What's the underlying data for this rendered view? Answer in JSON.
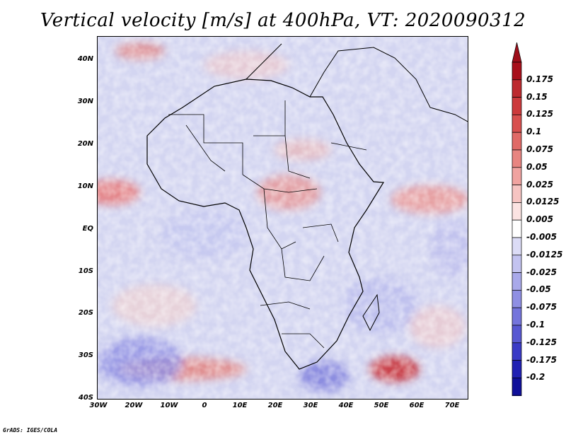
{
  "title": "Vertical velocity [m/s] at 400hPa, VT: 2020090312",
  "footer": "GrADS: IGES/COLA",
  "lat_labels": [
    "40N",
    "30N",
    "20N",
    "10N",
    "EQ",
    "10S",
    "20S",
    "30S",
    "40S"
  ],
  "lon_labels": [
    "30W",
    "20W",
    "10W",
    "0",
    "10E",
    "20E",
    "30E",
    "40E",
    "50E",
    "60E",
    "70E"
  ],
  "colorbar": {
    "levels": [
      "0.175",
      "0.15",
      "0.125",
      "0.1",
      "0.075",
      "0.05",
      "0.025",
      "0.0125",
      "0.005",
      "-0.005",
      "-0.0125",
      "-0.025",
      "-0.05",
      "-0.075",
      "-0.1",
      "-0.125",
      "-0.175",
      "-0.2"
    ],
    "colors": [
      "#a80f1b",
      "#bd2a2f",
      "#cc3a3c",
      "#d8504f",
      "#e06a67",
      "#e88581",
      "#f0a3a0",
      "#f6c4c2",
      "#fbe3e2",
      "#ffffff",
      "#dcdcf6",
      "#c3c3f0",
      "#a9a9ea",
      "#8f8fe3",
      "#7575dc",
      "#5858d2",
      "#3a3ac6",
      "#2121b3",
      "#10109a"
    ],
    "top_arrow_color": "#9e0e1a",
    "bottom_arrow_color": "#0c0c8c"
  },
  "field_background": "#d6d8f2"
}
